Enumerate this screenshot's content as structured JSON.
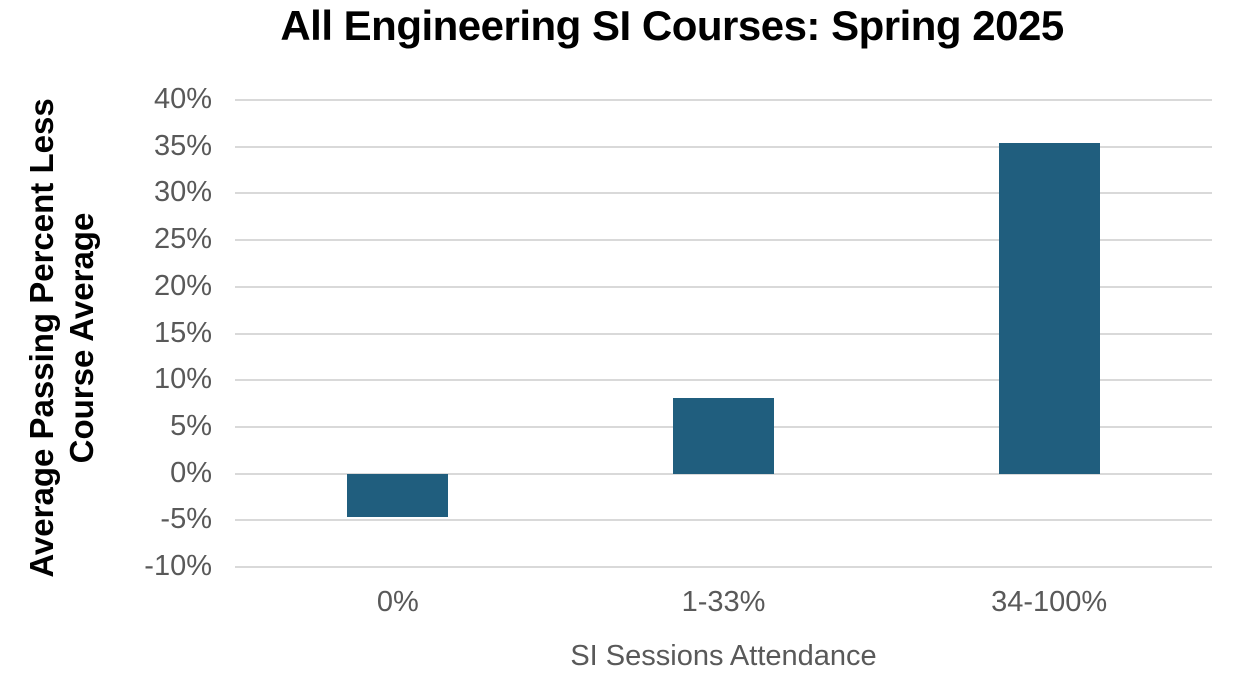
{
  "chart_data": {
    "type": "bar",
    "title": "All Engineering SI Courses: Spring 2025",
    "categories": [
      "0%",
      "1-33%",
      "34-100%"
    ],
    "values": [
      -4.7,
      8.1,
      35.4
    ],
    "xlabel": "SI Sessions Attendance",
    "ylabel": "Average Passing Percent Less Course Average",
    "ylabel_lines": [
      "Average Passing Percent Less",
      "Course Average"
    ],
    "ylim": [
      -10,
      40
    ],
    "ytick_step": 5,
    "yticks": [
      "40%",
      "35%",
      "30%",
      "25%",
      "20%",
      "15%",
      "10%",
      "5%",
      "0%",
      "-5%",
      "-10%"
    ],
    "grid": true,
    "legend": "none",
    "colors": {
      "bar": "#205e7e",
      "gridline": "#d9d9d9",
      "tick_label": "#595959",
      "x_axis_title": "#595959",
      "title": "#000000",
      "y_axis_title": "#000000",
      "background": "#ffffff"
    }
  }
}
